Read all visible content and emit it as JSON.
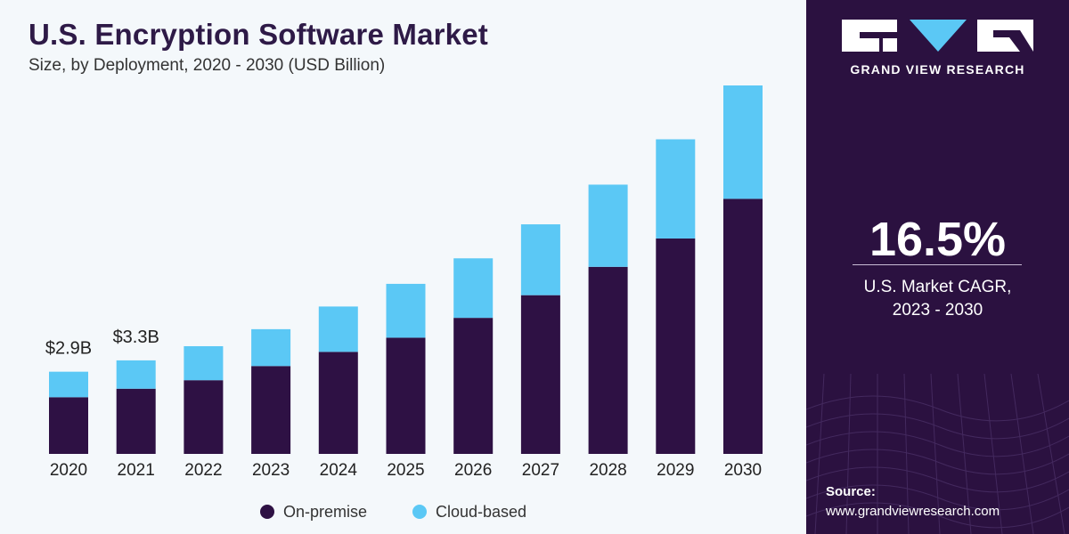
{
  "header": {
    "title": "U.S. Encryption Software Market",
    "subtitle": "Size, by Deployment, 2020 - 2030 (USD Billion)"
  },
  "brand": {
    "name": "GRAND VIEW RESEARCH",
    "logo_icon": "gvr-logo-icon"
  },
  "stats": {
    "cagr_value": "16.5%",
    "cagr_label_line1": "U.S. Market CAGR,",
    "cagr_label_line2": "2023 - 2030"
  },
  "source": {
    "label": "Source:",
    "url": "www.grandviewresearch.com"
  },
  "colors": {
    "on_premise": "#2e1144",
    "cloud_based": "#5bc8f5",
    "side_panel": "#2b1140",
    "title": "#2e1a47"
  },
  "chart_data": {
    "type": "bar",
    "stacked": true,
    "title": "U.S. Encryption Software Market",
    "subtitle": "Size, by Deployment, 2020 - 2030 (USD Billion)",
    "xlabel": "",
    "ylabel": "",
    "categories": [
      "2020",
      "2021",
      "2022",
      "2023",
      "2024",
      "2025",
      "2026",
      "2027",
      "2028",
      "2029",
      "2030"
    ],
    "series": [
      {
        "name": "On-premise",
        "values": [
          2.0,
          2.3,
          2.6,
          3.1,
          3.6,
          4.1,
          4.8,
          5.6,
          6.6,
          7.6,
          9.0
        ]
      },
      {
        "name": "Cloud-based",
        "values": [
          0.9,
          1.0,
          1.2,
          1.3,
          1.6,
          1.9,
          2.1,
          2.5,
          2.9,
          3.5,
          4.0
        ]
      }
    ],
    "data_labels": [
      {
        "category": "2020",
        "text": "$2.9B"
      },
      {
        "category": "2021",
        "text": "$3.3B"
      }
    ],
    "ylim": [
      0,
      13
    ],
    "grid": false,
    "legend": "bottom"
  }
}
